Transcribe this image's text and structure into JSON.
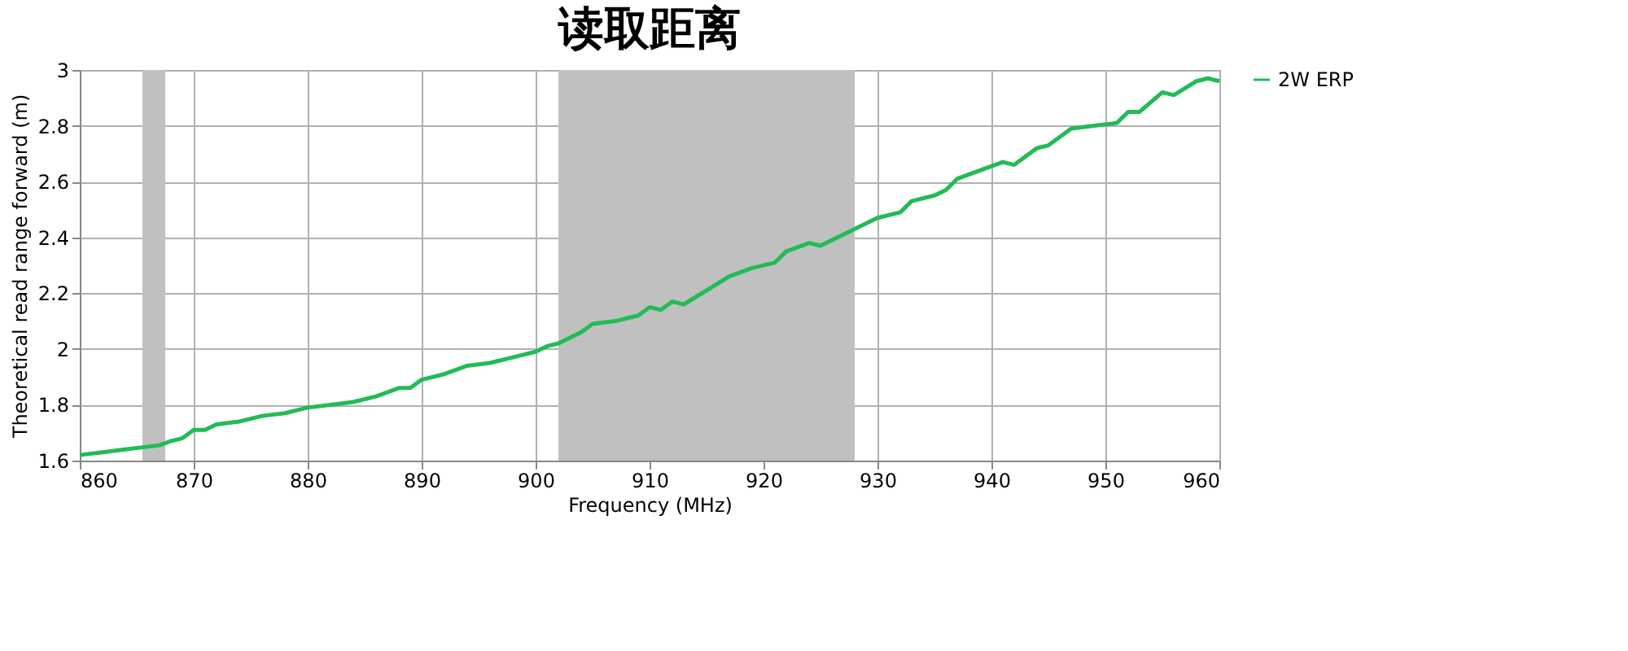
{
  "chart_data": {
    "type": "line",
    "title": "读取距离",
    "xlabel": "Frequency (MHz)",
    "ylabel": "Theoretical read range forward (m)",
    "xlim": [
      860,
      960
    ],
    "xticks": [
      860,
      870,
      880,
      890,
      900,
      910,
      920,
      930,
      940,
      950,
      960
    ],
    "ylim": [
      1.6,
      3
    ],
    "yticks": [
      1.6,
      1.8,
      2,
      2.2,
      2.4,
      2.6,
      2.8,
      3
    ],
    "grid": true,
    "legend": "right",
    "marker": "none",
    "line_style": "solid",
    "bands": [
      {
        "axis": "x",
        "from": 865.5,
        "to": 867.5,
        "color": "#c0c0c0"
      },
      {
        "axis": "x",
        "from": 902,
        "to": 928,
        "color": "#c0c0c0"
      }
    ],
    "series": [
      {
        "name": "2W ERP",
        "color": "#22bb55",
        "x": [
          860,
          862,
          864,
          866,
          867,
          868,
          869,
          870,
          871,
          872,
          874,
          876,
          878,
          880,
          882,
          884,
          886,
          888,
          889,
          890,
          892,
          894,
          896,
          898,
          900,
          901,
          902,
          904,
          905,
          907,
          909,
          910,
          911,
          912,
          913,
          915,
          917,
          919,
          921,
          922,
          924,
          925,
          927,
          929,
          930,
          932,
          933,
          935,
          936,
          937,
          939,
          941,
          942,
          944,
          945,
          947,
          949,
          951,
          952,
          953,
          955,
          956,
          958,
          959,
          960
        ],
        "values": [
          1.62,
          1.63,
          1.64,
          1.65,
          1.655,
          1.67,
          1.68,
          1.71,
          1.71,
          1.73,
          1.74,
          1.76,
          1.77,
          1.79,
          1.8,
          1.81,
          1.83,
          1.86,
          1.86,
          1.89,
          1.91,
          1.94,
          1.95,
          1.97,
          1.99,
          2.01,
          2.02,
          2.06,
          2.09,
          2.1,
          2.12,
          2.15,
          2.14,
          2.17,
          2.16,
          2.21,
          2.26,
          2.29,
          2.31,
          2.35,
          2.38,
          2.37,
          2.41,
          2.45,
          2.47,
          2.49,
          2.53,
          2.55,
          2.57,
          2.61,
          2.64,
          2.67,
          2.66,
          2.72,
          2.73,
          2.79,
          2.8,
          2.81,
          2.85,
          2.85,
          2.92,
          2.91,
          2.96,
          2.97,
          2.96
        ]
      }
    ]
  }
}
